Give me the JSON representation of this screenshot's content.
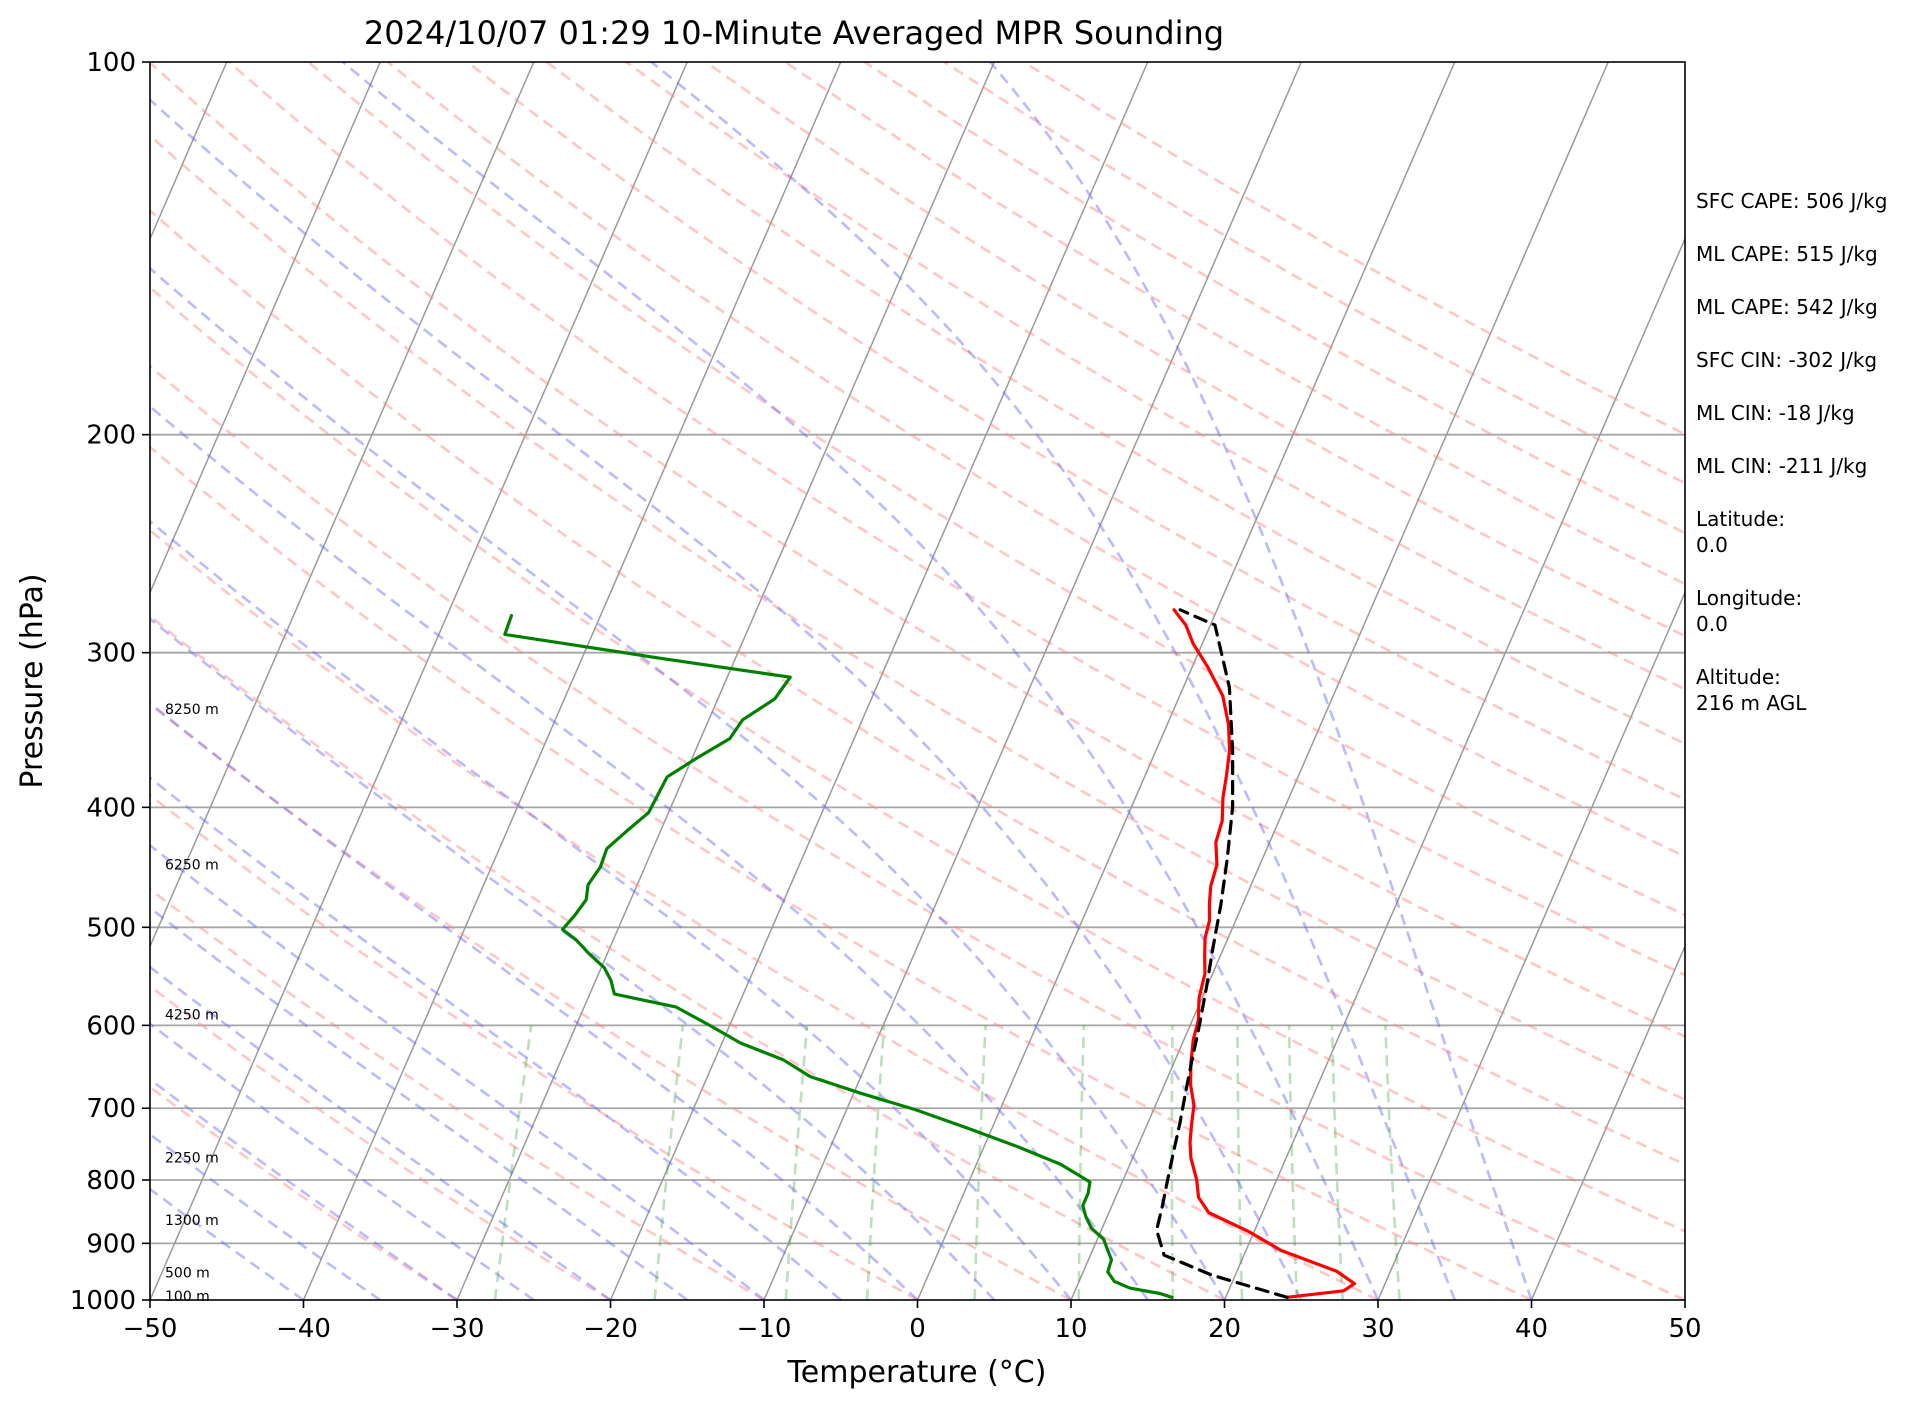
{
  "chart_data": {
    "type": "line",
    "title": "2024/10/07 01:29 10-Minute Averaged MPR Sounding",
    "xlabel": "Temperature (°C)",
    "ylabel": "Pressure (hPa)",
    "xlim": [
      -50,
      50
    ],
    "ylim": [
      1000,
      100
    ],
    "y_scale": "log",
    "x_ticks": [
      "−50",
      "−40",
      "−30",
      "−20",
      "−10",
      "0",
      "10",
      "20",
      "30",
      "40",
      "50"
    ],
    "y_ticks": [
      1000,
      900,
      800,
      700,
      600,
      500,
      400,
      300,
      200,
      100
    ],
    "grid": "horizontal at pressure ticks, skewed isotherms, dry adiabats, moist adiabats, mixing-ratio lines",
    "height_labels": [
      {
        "text": "100 m",
        "pressure": 993
      },
      {
        "text": "500 m",
        "pressure": 950
      },
      {
        "text": "1300 m",
        "pressure": 862
      },
      {
        "text": "2250 m",
        "pressure": 767
      },
      {
        "text": "4250 m",
        "pressure": 588
      },
      {
        "text": "6250 m",
        "pressure": 445
      },
      {
        "text": "8250 m",
        "pressure": 333
      }
    ],
    "series": [
      {
        "key": "temperature",
        "color": "#ff0000",
        "points": [
          [
            24.0,
            995
          ],
          [
            27.5,
            983
          ],
          [
            28.0,
            970
          ],
          [
            26.5,
            948
          ],
          [
            22.3,
            912
          ],
          [
            19.6,
            880
          ],
          [
            16.5,
            850
          ],
          [
            15.4,
            826
          ],
          [
            14.8,
            800
          ],
          [
            13.8,
            768
          ],
          [
            13.3,
            746
          ],
          [
            12.9,
            722
          ],
          [
            12.5,
            696
          ],
          [
            11.7,
            670
          ],
          [
            11.1,
            643
          ],
          [
            10.6,
            616
          ],
          [
            10.4,
            595
          ],
          [
            9.8,
            570
          ],
          [
            9.5,
            545
          ],
          [
            9.0,
            528
          ],
          [
            8.5,
            510
          ],
          [
            8.3,
            494
          ],
          [
            7.8,
            478
          ],
          [
            7.4,
            463
          ],
          [
            7.2,
            445
          ],
          [
            6.5,
            427
          ],
          [
            6.3,
            410
          ],
          [
            5.7,
            393
          ],
          [
            5.3,
            377
          ],
          [
            4.8,
            360
          ],
          [
            4.0,
            343
          ],
          [
            2.8,
            325
          ],
          [
            1.0,
            308
          ],
          [
            -0.6,
            295
          ],
          [
            -1.6,
            285
          ],
          [
            -2.8,
            277
          ]
        ]
      },
      {
        "key": "dewpoint",
        "color": "#008000",
        "points": [
          [
            16.5,
            995
          ],
          [
            15.6,
            988
          ],
          [
            13.5,
            978
          ],
          [
            12.3,
            966
          ],
          [
            11.6,
            949
          ],
          [
            11.5,
            928
          ],
          [
            11.0,
            912
          ],
          [
            10.4,
            893
          ],
          [
            9.3,
            875
          ],
          [
            8.6,
            856
          ],
          [
            8.1,
            839
          ],
          [
            8.1,
            820
          ],
          [
            7.9,
            803
          ],
          [
            5.5,
            777
          ],
          [
            2.2,
            752
          ],
          [
            -1.5,
            727
          ],
          [
            -5.5,
            702
          ],
          [
            -9.5,
            681
          ],
          [
            -13.3,
            660
          ],
          [
            -15.5,
            640
          ],
          [
            -18.8,
            620
          ],
          [
            -21.3,
            600
          ],
          [
            -24.0,
            580
          ],
          [
            -28.4,
            566
          ],
          [
            -29.0,
            552
          ],
          [
            -29.8,
            539
          ],
          [
            -31.2,
            525
          ],
          [
            -32.4,
            512
          ],
          [
            -33.6,
            502
          ],
          [
            -33.2,
            489
          ],
          [
            -32.9,
            475
          ],
          [
            -33.2,
            462
          ],
          [
            -32.9,
            447
          ],
          [
            -33.0,
            432
          ],
          [
            -32.2,
            418
          ],
          [
            -31.3,
            404
          ],
          [
            -31.2,
            391
          ],
          [
            -31.1,
            378
          ],
          [
            -29.7,
            365
          ],
          [
            -28.1,
            352
          ],
          [
            -27.8,
            340
          ],
          [
            -26.3,
            327
          ],
          [
            -25.9,
            314
          ],
          [
            -35.0,
            303
          ],
          [
            -45.7,
            290
          ],
          [
            -45.8,
            280
          ]
        ]
      },
      {
        "key": "parcel",
        "color": "#000000",
        "dashed": true,
        "points": [
          [
            24.0,
            995
          ],
          [
            18.5,
            955
          ],
          [
            14.8,
            920
          ],
          [
            13.6,
            878
          ],
          [
            13.3,
            840
          ],
          [
            12.9,
            800
          ],
          [
            12.5,
            760
          ],
          [
            12.1,
            720
          ],
          [
            11.6,
            680
          ],
          [
            11.1,
            640
          ],
          [
            10.6,
            600
          ],
          [
            10.0,
            560
          ],
          [
            9.3,
            520
          ],
          [
            8.6,
            480
          ],
          [
            7.7,
            440
          ],
          [
            6.6,
            400
          ],
          [
            5.0,
            360
          ],
          [
            3.0,
            320
          ],
          [
            0.3,
            285
          ],
          [
            -2.4,
            277
          ]
        ]
      }
    ]
  },
  "stats": {
    "lines": [
      "SFC CAPE: 506 J/kg",
      "ML CAPE: 515 J/kg",
      "ML CAPE: 542 J/kg",
      "SFC CIN: -302 J/kg",
      "ML CIN: -18 J/kg",
      "ML CIN: -211 J/kg"
    ],
    "latitude": "Latitude:\n0.0",
    "longitude": "Longitude:\n0.0",
    "altitude": "Altitude:\n216 m AGL"
  }
}
